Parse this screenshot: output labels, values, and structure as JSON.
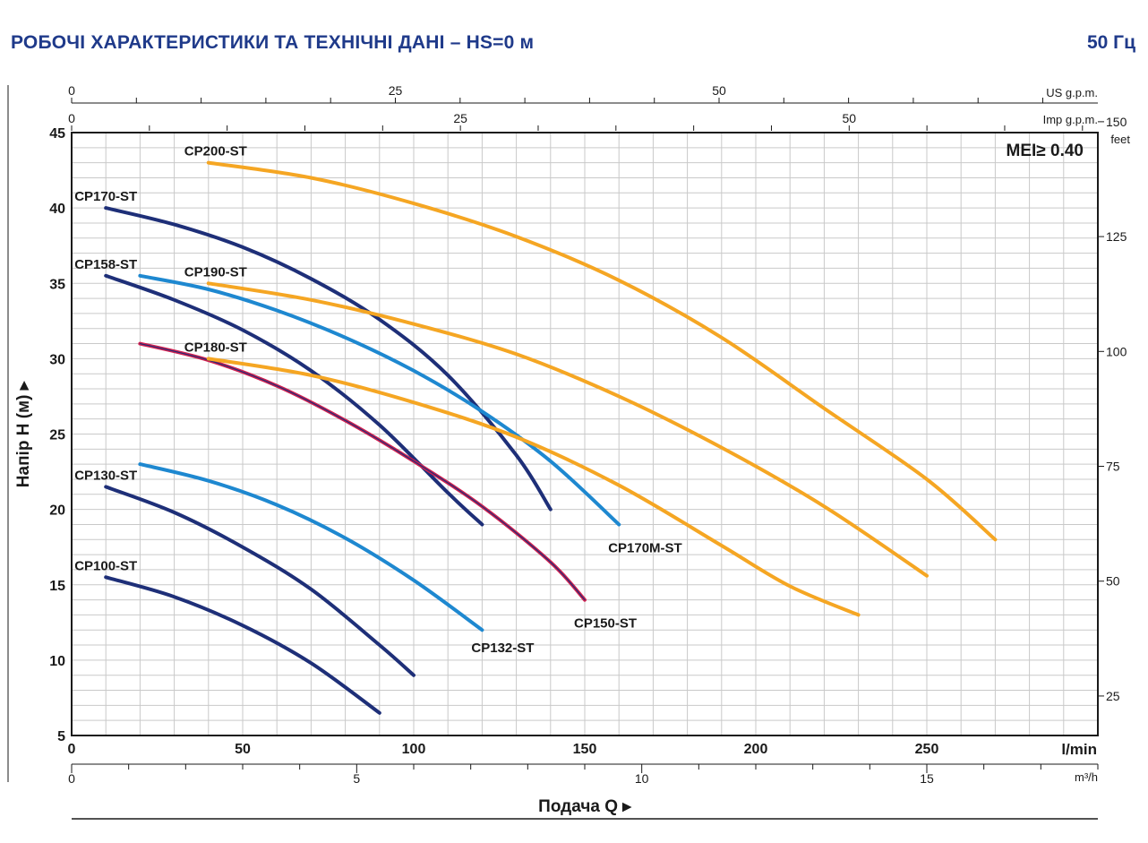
{
  "header": {
    "title": "РОБОЧІ ХАРАКТЕРИСТИКИ ТА ТЕХНІЧНІ ДАНІ   –  HS=0 м",
    "frequency": "50 Гц"
  },
  "chart_data": {
    "type": "line",
    "ylabel": "Напір H (м) ▸",
    "xlabel": "Подача Q ▸",
    "mei_label": "MEI≥ 0.40",
    "xlim": [
      0,
      300
    ],
    "ylim": [
      5,
      45
    ],
    "grid": true,
    "x_unit": "l/min",
    "x_ticks": [
      "0",
      "50",
      "100",
      "150",
      "200",
      "250"
    ],
    "y_ticks": [
      "5",
      "10",
      "15",
      "20",
      "25",
      "30",
      "35",
      "40",
      "45"
    ],
    "secondary_axes": {
      "us_gpm": {
        "unit": "US g.p.m.",
        "ticks": [
          "0",
          "25",
          "50"
        ]
      },
      "imp_gpm": {
        "unit": "Imp g.p.m.",
        "ticks": [
          "0",
          "25",
          "50"
        ]
      },
      "feet": {
        "unit": "feet",
        "ticks": [
          "25",
          "50",
          "75",
          "100",
          "125",
          "150"
        ]
      },
      "m3h": {
        "unit": "m³/h",
        "ticks": [
          "0",
          "5",
          "10",
          "15"
        ]
      }
    },
    "colors": {
      "navy": "#1e2f78",
      "blue": "#1e88d0",
      "orange": "#f5a623",
      "red": "#d11f4f"
    },
    "series": [
      {
        "name": "CP100-ST",
        "color": "#1e2f78",
        "label_pos": "start",
        "x": [
          10,
          30,
          50,
          70,
          90
        ],
        "y": [
          15.5,
          14.2,
          12.3,
          9.8,
          6.5
        ]
      },
      {
        "name": "CP130-ST",
        "color": "#1e2f78",
        "label_pos": "start",
        "x": [
          10,
          30,
          50,
          70,
          90,
          100
        ],
        "y": [
          21.5,
          19.8,
          17.5,
          14.7,
          11.0,
          9.0
        ]
      },
      {
        "name": "CP132-ST",
        "color": "#1e88d0",
        "label_pos": "end",
        "x": [
          20,
          40,
          60,
          80,
          100,
          120
        ],
        "y": [
          23.0,
          21.9,
          20.3,
          18.1,
          15.3,
          12.0
        ]
      },
      {
        "name": "CP158-ST",
        "color": "#1e2f78",
        "label_pos": "start",
        "x": [
          10,
          30,
          50,
          70,
          90,
          110,
          120
        ],
        "y": [
          35.5,
          33.9,
          31.9,
          29.2,
          25.6,
          21.1,
          19.0
        ]
      },
      {
        "name": "CP150-ST",
        "color": "#d11f4f",
        "label_pos": "end",
        "x": [
          20,
          40,
          60,
          80,
          100,
          120,
          140,
          150
        ],
        "y": [
          31.0,
          29.9,
          28.2,
          25.9,
          23.2,
          20.2,
          16.5,
          14.0
        ]
      },
      {
        "name": "CP170-ST",
        "color": "#1e2f78",
        "label_pos": "start",
        "x": [
          10,
          30,
          50,
          70,
          90,
          110,
          130,
          140
        ],
        "y": [
          40.0,
          38.9,
          37.4,
          35.3,
          32.6,
          28.9,
          23.6,
          20.0
        ]
      },
      {
        "name": "CP170M-ST",
        "color": "#1e88d0",
        "label_pos": "end",
        "x": [
          20,
          40,
          60,
          80,
          100,
          120,
          140,
          160
        ],
        "y": [
          35.5,
          34.6,
          33.2,
          31.4,
          29.2,
          26.5,
          23.2,
          19.0
        ]
      },
      {
        "name": "CP180-ST",
        "color": "#f5a623",
        "label_pos": "start",
        "x": [
          40,
          70,
          100,
          130,
          160,
          190,
          210,
          230
        ],
        "y": [
          30.0,
          28.9,
          27.1,
          24.8,
          21.6,
          17.6,
          14.9,
          13.0
        ]
      },
      {
        "name": "CP190-ST",
        "color": "#f5a623",
        "label_pos": "start",
        "x": [
          40,
          70,
          100,
          130,
          160,
          190,
          220,
          250
        ],
        "y": [
          35.0,
          33.9,
          32.3,
          30.3,
          27.5,
          24.1,
          20.2,
          15.6
        ]
      },
      {
        "name": "CP200-ST",
        "color": "#f5a623",
        "label_pos": "start",
        "x": [
          40,
          70,
          100,
          130,
          160,
          190,
          220,
          250,
          270
        ],
        "y": [
          43.0,
          42.0,
          40.3,
          38.1,
          35.2,
          31.4,
          26.7,
          22.0,
          18.0
        ]
      }
    ]
  }
}
